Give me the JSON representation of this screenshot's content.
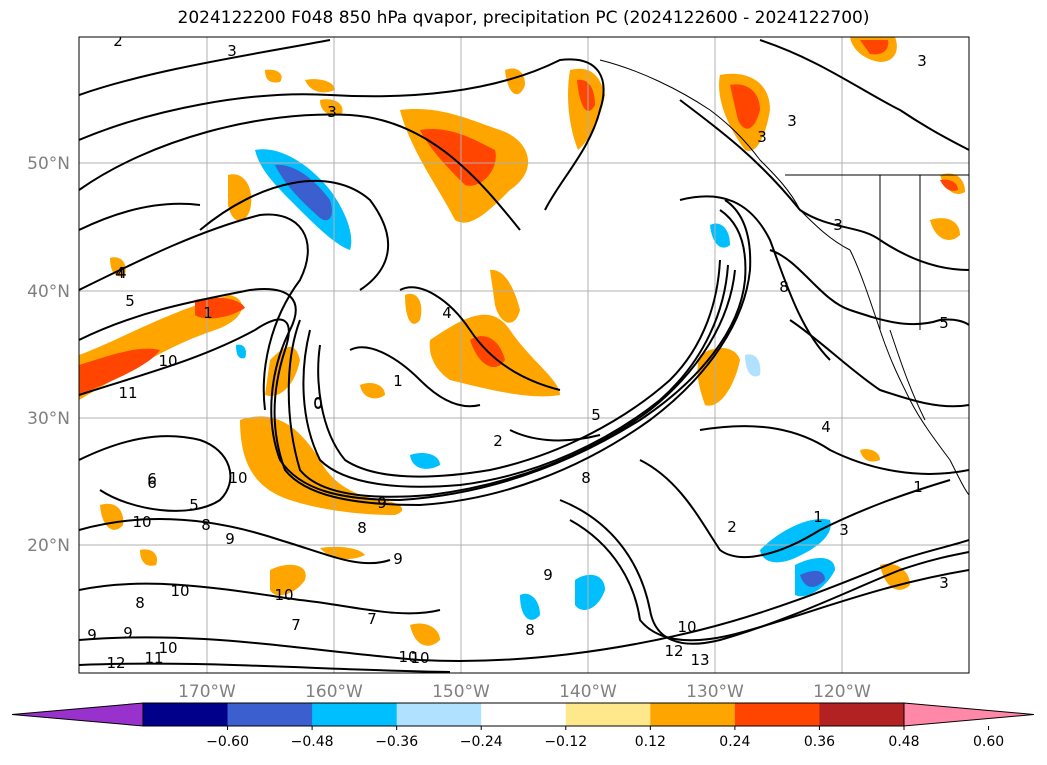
{
  "title": "2024122200 F048 850 hPa qvapor, precipitation PC (2024122600 - 2024122700)",
  "lon_labels": [
    "170°W",
    "160°W",
    "150°W",
    "140°W",
    "130°W",
    "120°W"
  ],
  "lat_labels": [
    "50°N",
    "40°N",
    "30°N",
    "20°N"
  ],
  "colorbar": {
    "tick_labels": [
      "−0.60",
      "−0.48",
      "−0.36",
      "−0.24",
      "−0.12",
      "0.12",
      "0.24",
      "0.36",
      "0.48",
      "0.60"
    ],
    "colors": [
      "#9932cc",
      "#00008b",
      "#3b5fcf",
      "#00bfff",
      "#b0e2ff",
      "#ffffff",
      "#ffe78c",
      "#ffa500",
      "#ff4500",
      "#b22222",
      "#ff88a8"
    ]
  },
  "contour_labels": [
    "2",
    "3",
    "3",
    "3",
    "3",
    "3",
    "3",
    "4",
    "4",
    "4",
    "5",
    "5",
    "5",
    "10",
    "11",
    "10",
    "1",
    "1",
    "0",
    "2",
    "5",
    "6",
    "8",
    "9",
    "9",
    "10",
    "10",
    "8",
    "9",
    "8",
    "9",
    "10",
    "10",
    "10",
    "11",
    "12",
    "13",
    "12",
    "7",
    "7",
    "9",
    "8",
    "8",
    "2",
    "3",
    "1",
    "3",
    "1",
    "4",
    "10",
    "10",
    "0",
    "8",
    "6",
    "9"
  ]
}
